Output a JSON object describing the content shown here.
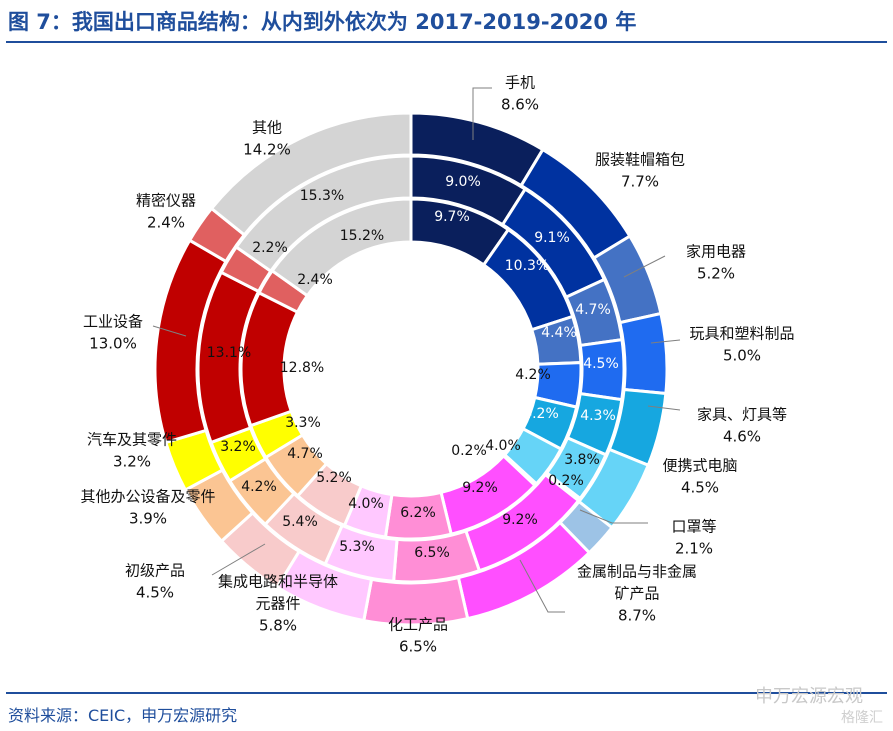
{
  "title": "图 7：我国出口商品结构：从内到外依次为 2017-2019-2020 年",
  "source": "资料来源：CEIC，申万宏源研究",
  "watermark": "申万宏源宏观",
  "watermark2": "格隆汇",
  "colors": {
    "title": "#1f4e9c",
    "leader": "#7f7f7f"
  },
  "chart_data": {
    "type": "donut",
    "rings": [
      "2017",
      "2019",
      "2020"
    ],
    "categories": [
      {
        "name": "手机",
        "name_lines": [
          "手机"
        ],
        "color": "#0a1f5c",
        "v2017": 9.7,
        "v2019": 9.0,
        "v2020": 8.6,
        "label_2017": "9.7%",
        "label_2019": "9.0%",
        "label_2020": "8.6%"
      },
      {
        "name": "服装鞋帽箱包",
        "name_lines": [
          "服装鞋帽箱包"
        ],
        "color": "#0032a0",
        "v2017": 10.3,
        "v2019": 9.1,
        "v2020": 7.7,
        "label_2017": "10.3%",
        "label_2019": "9.1%",
        "label_2020": "7.7%"
      },
      {
        "name": "家用电器",
        "name_lines": [
          "家用电器"
        ],
        "color": "#4472c4",
        "v2017": 4.4,
        "v2019": 4.7,
        "v2020": 5.2,
        "label_2017": "4.4%",
        "label_2019": "4.7%",
        "label_2020": "5.2%"
      },
      {
        "name": "玩具和塑料制品",
        "name_lines": [
          "玩具和塑料制品"
        ],
        "color": "#1f6bf0",
        "v2017": 4.2,
        "v2019": 4.5,
        "v2020": 5.0,
        "label_2017": "4.2%",
        "label_2019": "4.5%",
        "label_2020": "5.0%"
      },
      {
        "name": "家具、灯具等",
        "name_lines": [
          "家具、灯具等"
        ],
        "color": "#16a7e0",
        "v2017": 4.2,
        "v2019": 4.3,
        "v2020": 4.6,
        "label_2017": "4.2%",
        "label_2019": "4.3%",
        "label_2020": "4.6%"
      },
      {
        "name": "便携式电脑",
        "name_lines": [
          "便携式电脑"
        ],
        "color": "#66d4f7",
        "v2017": 4.0,
        "v2019": 3.8,
        "v2020": 4.5,
        "label_2017": "4.0%",
        "label_2019": "3.8%",
        "label_2020": "4.5%"
      },
      {
        "name": "口罩等",
        "name_lines": [
          "口罩等"
        ],
        "color": "#9dc3e6",
        "v2017": 0.2,
        "v2019": 0.2,
        "v2020": 2.1,
        "label_2017": "0.2%",
        "label_2019": "0.2%",
        "label_2020": "2.1%"
      },
      {
        "name": "金属制品与非金属矿产品",
        "name_lines": [
          "金属制品与非金属",
          "矿产品"
        ],
        "color": "#ff4fff",
        "v2017": 9.2,
        "v2019": 9.2,
        "v2020": 8.7,
        "label_2017": "9.2%",
        "label_2019": "9.2%",
        "label_2020": "8.7%"
      },
      {
        "name": "化工产品",
        "name_lines": [
          "化工产品"
        ],
        "color": "#ff8ed6",
        "v2017": 6.2,
        "v2019": 6.5,
        "v2020": 6.5,
        "label_2017": "6.2%",
        "label_2019": "6.5%",
        "label_2020": "6.5%"
      },
      {
        "name": "集成电路和半导体元器件",
        "name_lines": [
          "集成电路和半导体",
          "元器件"
        ],
        "color": "#ffc8ff",
        "v2017": 4.0,
        "v2019": 5.3,
        "v2020": 5.8,
        "label_2017": "4.0%",
        "label_2019": "5.3%",
        "label_2020": "5.8%"
      },
      {
        "name": "初级产品",
        "name_lines": [
          "初级产品"
        ],
        "color": "#f8cbcb",
        "v2017": 5.2,
        "v2019": 5.4,
        "v2020": 4.5,
        "label_2017": "5.2%",
        "label_2019": "5.4%",
        "label_2020": "4.5%"
      },
      {
        "name": "其他办公设备及零件",
        "name_lines": [
          "其他办公设备及零件"
        ],
        "color": "#fbc593",
        "v2017": 4.7,
        "v2019": 4.2,
        "v2020": 3.9,
        "label_2017": "4.7%",
        "label_2019": "4.2%",
        "label_2020": "3.9%"
      },
      {
        "name": "汽车及其零件",
        "name_lines": [
          "汽车及其零件"
        ],
        "color": "#ffff00",
        "v2017": 3.3,
        "v2019": 3.2,
        "v2020": 3.2,
        "label_2017": "3.3%",
        "label_2019": "3.2%",
        "label_2020": "3.2%"
      },
      {
        "name": "工业设备",
        "name_lines": [
          "工业设备"
        ],
        "color": "#c00000",
        "v2017": 12.8,
        "v2019": 13.1,
        "v2020": 13.0,
        "label_2017": "12.8%",
        "label_2019": "13.1%",
        "label_2020": "13.0%"
      },
      {
        "name": "精密仪器",
        "name_lines": [
          "精密仪器"
        ],
        "color": "#e06060",
        "v2017": 2.4,
        "v2019": 2.2,
        "v2020": 2.4,
        "label_2017": "2.4%",
        "label_2019": "2.2%",
        "label_2020": "2.4%"
      },
      {
        "name": "其他",
        "name_lines": [
          "其他"
        ],
        "color": "#d4d4d4",
        "v2017": 15.2,
        "v2019": 15.3,
        "v2020": 14.2,
        "label_2017": "15.2%",
        "label_2019": "15.3%",
        "label_2020": "14.2%"
      }
    ]
  }
}
